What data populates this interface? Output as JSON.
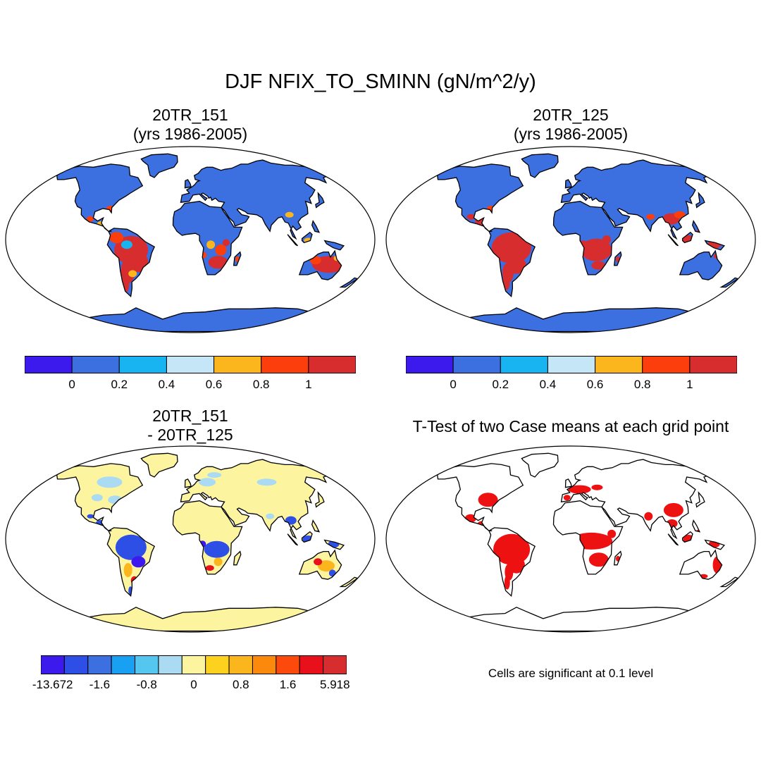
{
  "main_title": "DJF NFIX_TO_SMINN (gN/m^2/y)",
  "panels": {
    "top_left": {
      "title_line1": "20TR_151",
      "title_line2": "(yrs 1986-2005)"
    },
    "top_right": {
      "title_line1": "20TR_125",
      "title_line2": "(yrs 1986-2005)"
    },
    "bottom_left": {
      "title_line1": "20TR_151",
      "title_line2": "- 20TR_125"
    },
    "bottom_right": {
      "title_line1": "T-Test of two Case means at each grid point",
      "note": "Cells are significant at 0.1 level"
    }
  },
  "colorbars": {
    "case": {
      "colors": [
        "#3c1aee",
        "#3c6fe0",
        "#18b4f2",
        "#c5e6f7",
        "#fbb61e",
        "#fb3e0c",
        "#d72d2e"
      ],
      "labels": [
        "0",
        "0.2",
        "0.4",
        "0.6",
        "0.8",
        "1"
      ]
    },
    "diff": {
      "colors": [
        "#3c1aee",
        "#2d4fe6",
        "#3c6fe0",
        "#18a0f2",
        "#54c6f0",
        "#aadbf2",
        "#fdf4a0",
        "#fdd21e",
        "#fbb61e",
        "#fb8a0c",
        "#fb4a0c",
        "#e8101a",
        "#d72d2e"
      ],
      "labels": [
        "-13.672",
        "-1.6",
        "-0.8",
        "0",
        "0.8",
        "1.6",
        "5.918"
      ]
    }
  },
  "map_colors": {
    "ocean": "#ffffff",
    "coast": "#000000",
    "case_base": "#3c6fe0",
    "case_high": "#d72d2e",
    "case_mid": "#fb3e0c",
    "case_light": "#18b4f2",
    "case_orange": "#fbb61e",
    "diff_base": "#fdf4a0",
    "diff_light_blue": "#aadbf2",
    "diff_blue": "#2d4fe6",
    "diff_dark": "#3c1aee",
    "diff_orange": "#fbb61e",
    "diff_red": "#e8101a",
    "sig": "#ee1111"
  }
}
